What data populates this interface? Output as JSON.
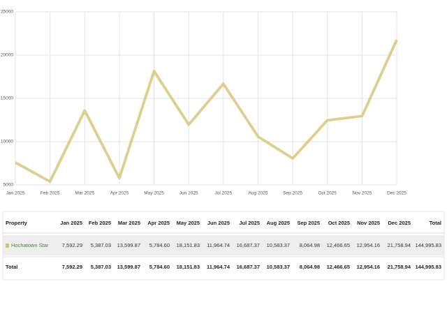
{
  "chart_data": {
    "type": "line",
    "categories": [
      "Jan 2025",
      "Feb 2025",
      "Mar 2025",
      "Apr 2025",
      "May 2025",
      "Jun 2025",
      "Jul 2025",
      "Aug 2025",
      "Sep 2025",
      "Oct 2025",
      "Nov 2025",
      "Dec 2025"
    ],
    "values": [
      7592.29,
      5387.03,
      13599.87,
      5784.6,
      18151.83,
      11964.74,
      16687.37,
      10583.37,
      8064.98,
      12466.65,
      12954.16,
      21758.94
    ],
    "color": "#ddd083",
    "ylim": [
      5000,
      25000
    ],
    "yticks": [
      5000,
      10000,
      15000,
      20000,
      25000
    ],
    "grid": true
  },
  "table": {
    "header": [
      "Property",
      "Jan 2025",
      "Feb 2025",
      "Mar 2025",
      "Apr 2025",
      "May 2025",
      "Jun 2025",
      "Jul 2025",
      "Aug 2025",
      "Sep 2025",
      "Oct 2025",
      "Nov 2025",
      "Dec 2025",
      "Total"
    ],
    "rows": [
      [
        "Hochatown Star",
        "7,592.29",
        "5,387.03",
        "13,599.87",
        "5,784.60",
        "18,151.83",
        "11,964.74",
        "16,687.37",
        "10,583.37",
        "8,064.98",
        "12,466.65",
        "12,954.16",
        "21,758.94",
        "144,995.83"
      ]
    ],
    "total": [
      "Total",
      "7,592.29",
      "5,387.03",
      "13,599.87",
      "5,784.60",
      "18,151.83",
      "11,964.74",
      "16,687.37",
      "10,583.37",
      "8,064.98",
      "12,466.65",
      "12,954.16",
      "21,758.94",
      "144,995.83"
    ]
  }
}
